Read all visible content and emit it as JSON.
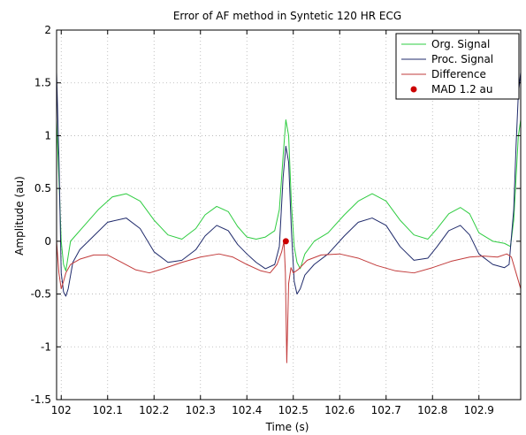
{
  "chart_data": {
    "type": "line",
    "title": "Error of AF method in Syntetic 120 HR ECG",
    "xlabel": "Time (s)",
    "ylabel": "Amplitude (au)",
    "xlim": [
      101.99,
      102.99
    ],
    "ylim": [
      -1.5,
      2
    ],
    "xticks": [
      102,
      102.1,
      102.2,
      102.3,
      102.4,
      102.5,
      102.6,
      102.7,
      102.8,
      102.9
    ],
    "xtick_labels": [
      "102",
      "102.1",
      "102.2",
      "102.3",
      "102.4",
      "102.5",
      "102.6",
      "102.7",
      "102.8",
      "102.9"
    ],
    "yticks": [
      -1.5,
      -1,
      -0.5,
      0,
      0.5,
      1,
      1.5,
      2
    ],
    "ytick_labels": [
      "-1.5",
      "-1",
      "-0.5",
      "0",
      "0.5",
      "1",
      "1.5",
      "2"
    ],
    "grid": true,
    "legend_position": "top-right",
    "series": [
      {
        "name": "Org. Signal",
        "color": "#2ecc40",
        "x": [
          101.99,
          101.995,
          102.0,
          102.005,
          102.01,
          102.02,
          102.03,
          102.05,
          102.08,
          102.11,
          102.14,
          102.17,
          102.2,
          102.23,
          102.26,
          102.29,
          102.31,
          102.335,
          102.36,
          102.38,
          102.4,
          102.42,
          102.44,
          102.46,
          102.47,
          102.478,
          102.484,
          102.49,
          102.496,
          102.502,
          102.508,
          102.515,
          102.525,
          102.545,
          102.575,
          102.61,
          102.64,
          102.67,
          102.7,
          102.73,
          102.76,
          102.79,
          102.81,
          102.835,
          102.86,
          102.88,
          102.9,
          102.93,
          102.955,
          102.968,
          102.975,
          102.98,
          102.985,
          102.99
        ],
        "y": [
          1.15,
          0.6,
          0.0,
          -0.22,
          -0.28,
          0.0,
          0.05,
          0.15,
          0.3,
          0.42,
          0.45,
          0.38,
          0.2,
          0.06,
          0.02,
          0.12,
          0.25,
          0.33,
          0.28,
          0.14,
          0.04,
          0.02,
          0.04,
          0.1,
          0.3,
          0.8,
          1.15,
          1.0,
          0.35,
          -0.05,
          -0.2,
          -0.26,
          -0.12,
          0.0,
          0.08,
          0.25,
          0.38,
          0.45,
          0.38,
          0.2,
          0.06,
          0.02,
          0.12,
          0.26,
          0.32,
          0.26,
          0.08,
          0.0,
          -0.02,
          -0.05,
          0.2,
          0.6,
          1.0,
          1.15
        ]
      },
      {
        "name": "Proc. Signal",
        "color": "#1f2a6b",
        "x": [
          101.99,
          101.995,
          102.0,
          102.005,
          102.01,
          102.015,
          102.025,
          102.04,
          102.07,
          102.1,
          102.14,
          102.17,
          102.2,
          102.23,
          102.26,
          102.29,
          102.31,
          102.335,
          102.36,
          102.38,
          102.4,
          102.42,
          102.44,
          102.46,
          102.47,
          102.478,
          102.484,
          102.49,
          102.496,
          102.502,
          102.508,
          102.515,
          102.525,
          102.545,
          102.575,
          102.61,
          102.64,
          102.67,
          102.7,
          102.73,
          102.76,
          102.79,
          102.81,
          102.835,
          102.86,
          102.88,
          102.9,
          102.93,
          102.955,
          102.965,
          102.975,
          102.98,
          102.985,
          102.99
        ],
        "y": [
          1.6,
          0.8,
          -0.3,
          -0.48,
          -0.52,
          -0.45,
          -0.2,
          -0.08,
          0.05,
          0.18,
          0.22,
          0.12,
          -0.1,
          -0.2,
          -0.18,
          -0.08,
          0.05,
          0.15,
          0.1,
          -0.03,
          -0.12,
          -0.2,
          -0.26,
          -0.22,
          -0.05,
          0.6,
          0.9,
          0.75,
          0.1,
          -0.38,
          -0.5,
          -0.45,
          -0.32,
          -0.22,
          -0.12,
          0.05,
          0.18,
          0.22,
          0.15,
          -0.05,
          -0.18,
          -0.16,
          -0.05,
          0.1,
          0.15,
          0.06,
          -0.12,
          -0.22,
          -0.25,
          -0.22,
          0.3,
          0.9,
          1.4,
          1.6
        ]
      },
      {
        "name": "Difference",
        "color": "#c23b3b",
        "x": [
          101.99,
          101.995,
          102.0,
          102.005,
          102.01,
          102.02,
          102.04,
          102.07,
          102.1,
          102.13,
          102.16,
          102.19,
          102.22,
          102.26,
          102.3,
          102.34,
          102.37,
          102.4,
          102.43,
          102.45,
          102.465,
          102.475,
          102.48,
          102.483,
          102.486,
          102.49,
          102.495,
          102.5,
          102.51,
          102.53,
          102.56,
          102.6,
          102.64,
          102.68,
          102.72,
          102.76,
          102.8,
          102.84,
          102.88,
          102.91,
          102.94,
          102.96,
          102.97,
          102.98,
          102.99
        ],
        "y": [
          0.0,
          -0.3,
          -0.45,
          -0.38,
          -0.3,
          -0.22,
          -0.17,
          -0.13,
          -0.13,
          -0.2,
          -0.27,
          -0.3,
          -0.26,
          -0.2,
          -0.15,
          -0.12,
          -0.15,
          -0.22,
          -0.28,
          -0.3,
          -0.22,
          -0.1,
          0.0,
          -0.3,
          -1.15,
          -0.4,
          -0.25,
          -0.3,
          -0.27,
          -0.18,
          -0.13,
          -0.12,
          -0.16,
          -0.23,
          -0.28,
          -0.3,
          -0.25,
          -0.19,
          -0.15,
          -0.14,
          -0.15,
          -0.12,
          -0.15,
          -0.3,
          -0.45
        ]
      }
    ],
    "points": [
      {
        "name": "MAD 1.2 au",
        "color": "#cc0000",
        "x": 102.484,
        "y": 0.0
      }
    ]
  }
}
